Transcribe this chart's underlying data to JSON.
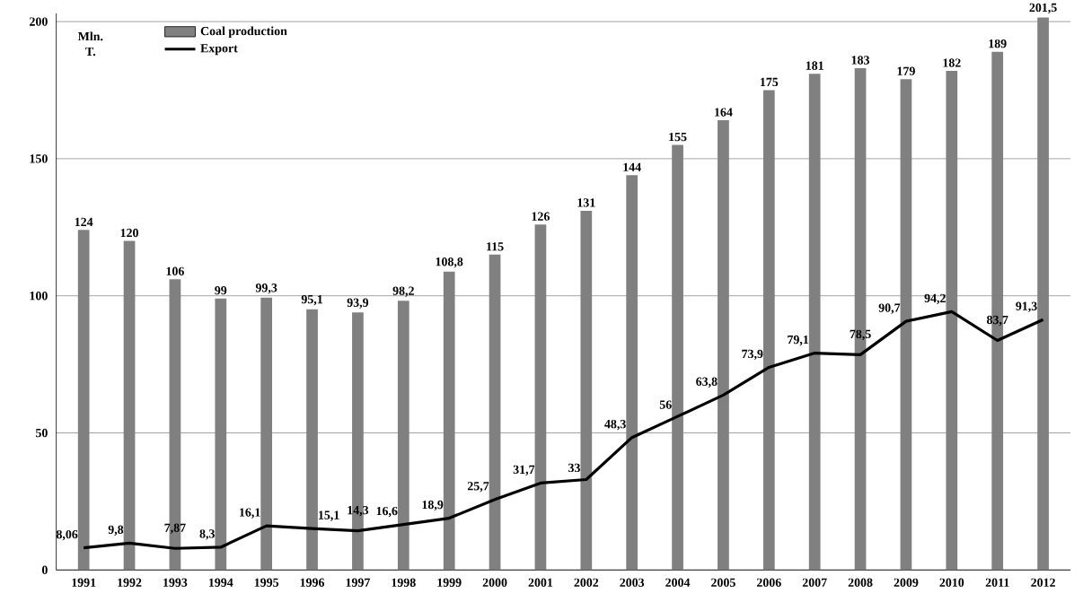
{
  "chart_data": {
    "type": "bar",
    "ylabel": "Mln. T.",
    "categories": [
      "1991",
      "1992",
      "1993",
      "1994",
      "1995",
      "1996",
      "1997",
      "1998",
      "1999",
      "2000",
      "2001",
      "2002",
      "2003",
      "2004",
      "2005",
      "2006",
      "2007",
      "2008",
      "2009",
      "2010",
      "2011",
      "2012"
    ],
    "series": [
      {
        "name": "Coal production",
        "color": "#808080",
        "values": [
          124,
          120,
          106,
          99,
          99.3,
          95.1,
          93.9,
          98.2,
          108.8,
          115,
          126,
          131,
          144,
          155,
          164,
          175,
          181,
          183,
          179,
          182,
          189,
          201.5
        ],
        "value_labels": [
          "124",
          "120",
          "106",
          "99",
          "99,3",
          "95,1",
          "93,9",
          "98,2",
          "108,8",
          "115",
          "126",
          "131",
          "144",
          "155",
          "164",
          "175",
          "181",
          "183",
          "179",
          "182",
          "189",
          "201,5"
        ]
      },
      {
        "name": "Export",
        "type": "line",
        "color": "#000000",
        "values": [
          8.06,
          9.8,
          7.87,
          8.3,
          16.1,
          15.1,
          14.3,
          16.6,
          18.9,
          25.7,
          31.7,
          33,
          48.3,
          56,
          63.8,
          73.9,
          79.1,
          78.5,
          90.7,
          94.2,
          83.7,
          91.3
        ],
        "value_labels": [
          "8,06",
          "9,8",
          "7,87",
          "8,3",
          "16,1",
          "15,1",
          "14,3",
          "16,6",
          "18,9",
          "25,7",
          "31,7",
          "33",
          "48,3",
          "56",
          "63,8",
          "73,9",
          "79,1",
          "78,5",
          "90,7",
          "94,2",
          "83,7",
          "91,3"
        ]
      }
    ],
    "ylim": [
      0,
      203
    ],
    "yticks": [
      0,
      50,
      100,
      150,
      200
    ],
    "grid": "y",
    "legend": "top left"
  }
}
